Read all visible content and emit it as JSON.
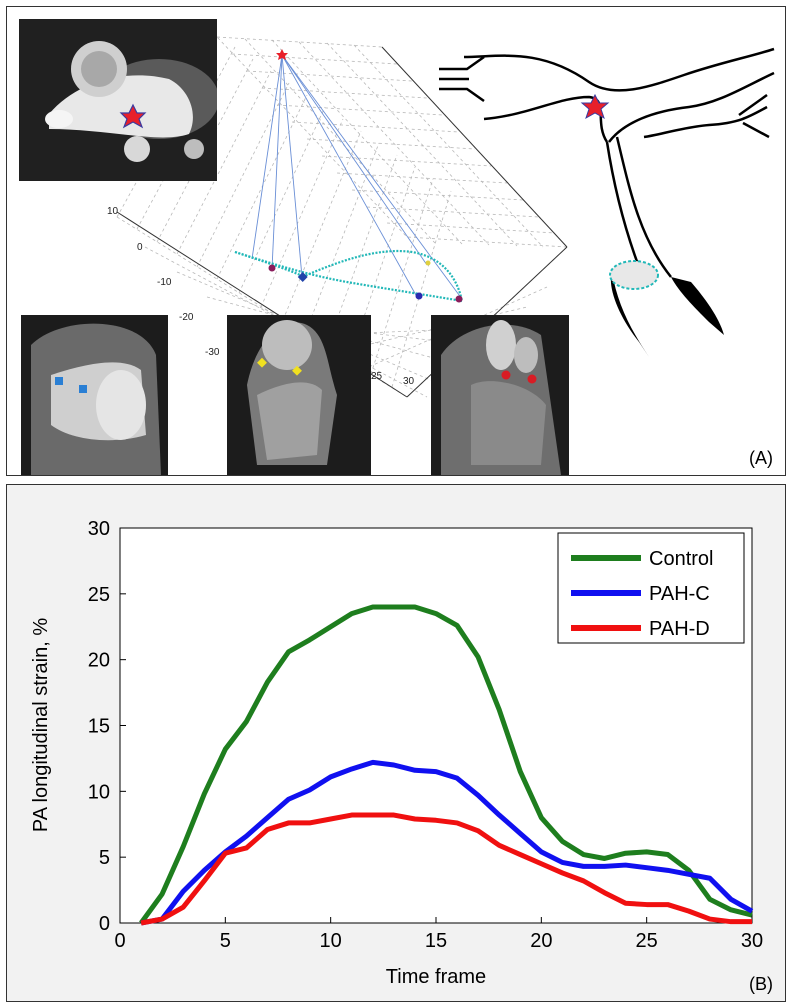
{
  "panel_a": {
    "label": "(A)",
    "axis_ticks_left": [
      "10",
      "0",
      "-10",
      "-20",
      "-30"
    ],
    "axis_ticks_bottom": [
      "25",
      "30"
    ],
    "colors": {
      "curve": "#22b8b8",
      "star": "#e8202a",
      "blue_marker": "#2a7fd4",
      "yellow_marker": "#f0e020",
      "red_marker": "#d81c24"
    }
  },
  "panel_b": {
    "label": "(B)"
  },
  "chart_data": {
    "type": "line",
    "title": "",
    "xlabel": "Time frame",
    "ylabel": "PA longitudinal strain, %",
    "xlim": [
      0,
      30
    ],
    "ylim": [
      0,
      30
    ],
    "xticks": [
      0,
      5,
      10,
      15,
      20,
      25,
      30
    ],
    "yticks": [
      0,
      5,
      10,
      15,
      20,
      25,
      30
    ],
    "x": [
      1,
      2,
      3,
      4,
      5,
      6,
      7,
      8,
      9,
      10,
      11,
      12,
      13,
      14,
      15,
      16,
      17,
      18,
      19,
      20,
      21,
      22,
      23,
      24,
      25,
      26,
      27,
      28,
      29,
      30
    ],
    "legend_position": "top-right",
    "series": [
      {
        "name": "Control",
        "color": "#1e7e1e",
        "values": [
          0,
          2.2,
          5.8,
          9.8,
          13.2,
          15.3,
          18.3,
          20.6,
          21.5,
          22.5,
          23.5,
          24.0,
          24.0,
          24.0,
          23.5,
          22.6,
          20.2,
          16.2,
          11.5,
          8.0,
          6.2,
          5.2,
          4.9,
          5.3,
          5.4,
          5.2,
          4.0,
          1.8,
          1.0,
          0.6
        ]
      },
      {
        "name": "PAH-C",
        "color": "#1010f0",
        "values": [
          0,
          0.3,
          2.4,
          4.0,
          5.4,
          6.6,
          8.0,
          9.4,
          10.1,
          11.1,
          11.7,
          12.2,
          12.0,
          11.6,
          11.5,
          11.0,
          9.7,
          8.2,
          6.8,
          5.4,
          4.6,
          4.3,
          4.3,
          4.4,
          4.2,
          4.0,
          3.7,
          3.4,
          1.8,
          0.9
        ]
      },
      {
        "name": "PAH-D",
        "color": "#f01010",
        "values": [
          0,
          0.3,
          1.2,
          3.2,
          5.3,
          5.7,
          7.1,
          7.6,
          7.6,
          7.9,
          8.2,
          8.2,
          8.2,
          7.9,
          7.8,
          7.6,
          7.0,
          5.9,
          5.2,
          4.5,
          3.8,
          3.2,
          2.3,
          1.5,
          1.4,
          1.4,
          0.9,
          0.3,
          0.1,
          0.1
        ]
      }
    ]
  }
}
